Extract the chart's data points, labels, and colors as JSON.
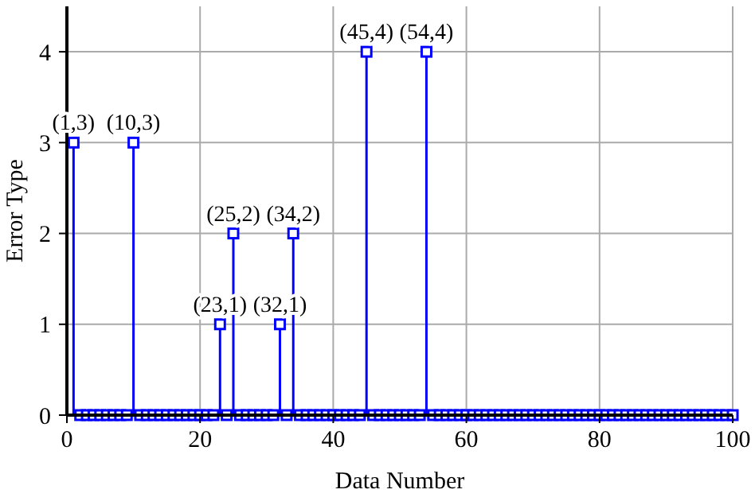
{
  "chart_data": {
    "type": "lollipop",
    "xlabel": "Data Number",
    "ylabel": "Error Type",
    "x": [
      1,
      2,
      3,
      4,
      5,
      6,
      7,
      8,
      9,
      10,
      11,
      12,
      13,
      14,
      15,
      16,
      17,
      18,
      19,
      20,
      21,
      22,
      23,
      24,
      25,
      26,
      27,
      28,
      29,
      30,
      31,
      32,
      33,
      34,
      35,
      36,
      37,
      38,
      39,
      40,
      41,
      42,
      43,
      44,
      45,
      46,
      47,
      48,
      49,
      50,
      51,
      52,
      53,
      54,
      55,
      56,
      57,
      58,
      59,
      60,
      61,
      62,
      63,
      64,
      65,
      66,
      67,
      68,
      69,
      70,
      71,
      72,
      73,
      74,
      75,
      76,
      77,
      78,
      79,
      80,
      81,
      82,
      83,
      84,
      85,
      86,
      87,
      88,
      89,
      90,
      91,
      92,
      93,
      94,
      95,
      96,
      97,
      98,
      99,
      100
    ],
    "series": [
      {
        "color": "#0000ff",
        "values": [
          3,
          0,
          0,
          0,
          0,
          0,
          0,
          0,
          0,
          3,
          0,
          0,
          0,
          0,
          0,
          0,
          0,
          0,
          0,
          0,
          0,
          0,
          1,
          0,
          2,
          0,
          0,
          0,
          0,
          0,
          0,
          1,
          0,
          2,
          0,
          0,
          0,
          0,
          0,
          0,
          0,
          0,
          0,
          0,
          4,
          0,
          0,
          0,
          0,
          0,
          0,
          0,
          0,
          4,
          0,
          0,
          0,
          0,
          0,
          0,
          0,
          0,
          0,
          0,
          0,
          0,
          0,
          0,
          0,
          0,
          0,
          0,
          0,
          0,
          0,
          0,
          0,
          0,
          0,
          0,
          0,
          0,
          0,
          0,
          0,
          0,
          0,
          0,
          0,
          0,
          0,
          0,
          0,
          0,
          0,
          0,
          0,
          0,
          0,
          0
        ]
      }
    ],
    "xlim": [
      0,
      100
    ],
    "xticks": [
      0,
      20,
      40,
      60,
      80,
      100
    ],
    "ylim": [
      0,
      4.5
    ],
    "yticks": [
      0,
      1,
      2,
      3,
      4
    ],
    "grid": true,
    "marker": "square",
    "annotations": [
      {
        "text": "(1,3)",
        "x": 1,
        "y": 3
      },
      {
        "text": "(10,3)",
        "x": 10,
        "y": 3
      },
      {
        "text": "(23,1)",
        "x": 23,
        "y": 1
      },
      {
        "text": "(25,2)",
        "x": 25,
        "y": 2
      },
      {
        "text": "(32,1)",
        "x": 32,
        "y": 1
      },
      {
        "text": "(34,2)",
        "x": 34,
        "y": 2
      },
      {
        "text": "(45,4)",
        "x": 45,
        "y": 4
      },
      {
        "text": "(54,4)",
        "x": 54,
        "y": 4
      }
    ]
  }
}
